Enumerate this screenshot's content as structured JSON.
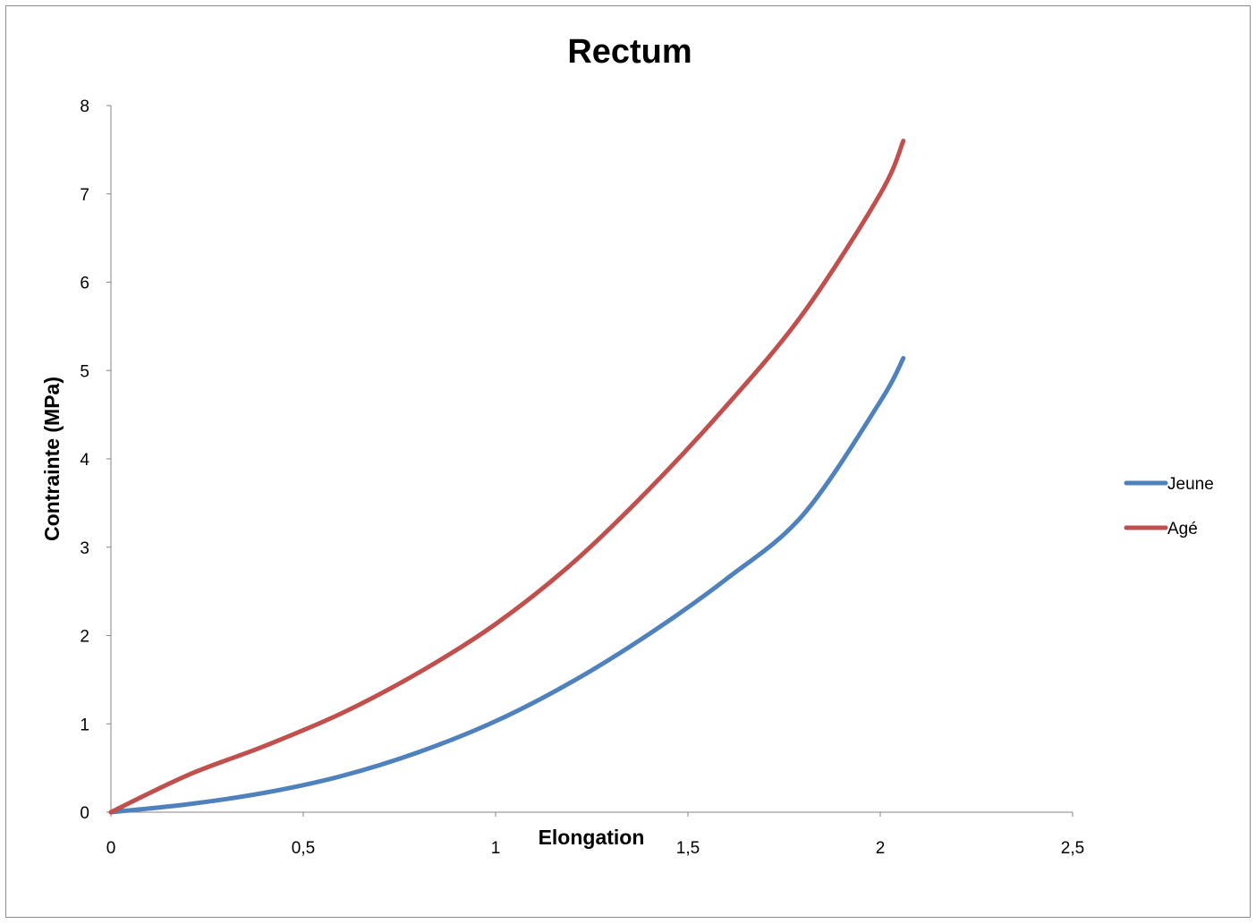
{
  "chart_data": {
    "type": "line",
    "title": "Rectum",
    "xlabel": "Elongation",
    "ylabel": "Contrainte (MPa)",
    "xlim": [
      0,
      2.5
    ],
    "ylim": [
      0,
      8
    ],
    "x_ticks": [
      "0",
      "0,5",
      "1",
      "1,5",
      "2",
      "2,5"
    ],
    "y_ticks": [
      "0",
      "1",
      "2",
      "3",
      "4",
      "5",
      "6",
      "7",
      "8"
    ],
    "grid": false,
    "legend_position": "right",
    "series": [
      {
        "name": "Jeune",
        "color": "#4f81bd",
        "x": [
          0,
          0.2,
          0.4,
          0.6,
          0.8,
          1.0,
          1.2,
          1.4,
          1.6,
          1.8,
          2.0,
          2.06
        ],
        "y": [
          0,
          0.09,
          0.22,
          0.41,
          0.68,
          1.03,
          1.48,
          2.02,
          2.64,
          3.37,
          4.65,
          5.14
        ]
      },
      {
        "name": "Agé",
        "color": "#c0504d",
        "x": [
          0,
          0.2,
          0.4,
          0.6,
          0.8,
          1.0,
          1.2,
          1.4,
          1.6,
          1.8,
          2.0,
          2.06
        ],
        "y": [
          0,
          0.42,
          0.75,
          1.12,
          1.58,
          2.13,
          2.82,
          3.66,
          4.6,
          5.65,
          7.0,
          7.6
        ]
      }
    ]
  }
}
